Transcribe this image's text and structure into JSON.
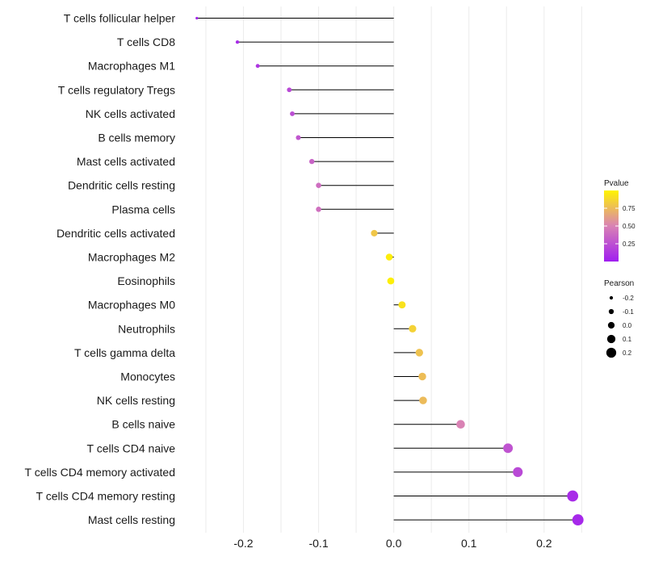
{
  "chart_data": {
    "type": "lollipop",
    "title": "",
    "xlabel": "",
    "ylabel": "",
    "xlim": [
      -0.28,
      0.255
    ],
    "xticks": [
      -0.2,
      -0.1,
      0.0,
      0.1,
      0.2
    ],
    "xtick_labels": [
      "-0.2",
      "-0.1",
      "0.0",
      "0.1",
      "0.2"
    ],
    "grid": true,
    "categories": [
      "T cells follicular helper",
      "T cells CD8",
      "Macrophages M1",
      "T cells regulatory  Tregs",
      "NK cells activated",
      "B cells memory",
      "Mast cells activated",
      "Dendritic cells resting",
      "Plasma cells",
      "Dendritic cells activated",
      "Macrophages M2",
      "Eosinophils",
      "Macrophages M0",
      "Neutrophils",
      "T cells gamma delta",
      "Monocytes",
      "NK cells resting",
      "B cells naive",
      "T cells CD4 naive",
      "T cells CD4 memory activated",
      "T cells CD4 memory resting",
      "Mast cells resting"
    ],
    "values": [
      -0.262,
      -0.208,
      -0.181,
      -0.139,
      -0.135,
      -0.127,
      -0.109,
      -0.1,
      -0.1,
      -0.026,
      -0.006,
      -0.004,
      0.011,
      0.025,
      0.034,
      0.038,
      0.039,
      0.089,
      0.152,
      0.165,
      0.238,
      0.245
    ],
    "pvalues": [
      0.03,
      0.07,
      0.12,
      0.22,
      0.24,
      0.28,
      0.35,
      0.4,
      0.41,
      0.8,
      0.97,
      0.98,
      0.92,
      0.85,
      0.78,
      0.76,
      0.75,
      0.5,
      0.27,
      0.22,
      0.07,
      0.05
    ],
    "color_legend": {
      "title": "Pvalue",
      "ticks": [
        0.25,
        0.5,
        0.75
      ],
      "tick_labels": [
        "0.25",
        "0.50",
        "0.75"
      ],
      "range": [
        0.0,
        1.0
      ],
      "low_color": "#a01ef0",
      "mid_color": "#d982b4",
      "high_color": "#fff400"
    },
    "size_legend": {
      "title": "Pearson",
      "values": [
        -0.2,
        -0.1,
        0.0,
        0.1,
        0.2
      ],
      "labels": [
        "-0.2",
        "-0.1",
        "0.0",
        "0.1",
        "0.2"
      ]
    },
    "colors": {
      "grid": "#ebebeb",
      "stem": "#000000",
      "legend_dot": "#000000"
    }
  }
}
